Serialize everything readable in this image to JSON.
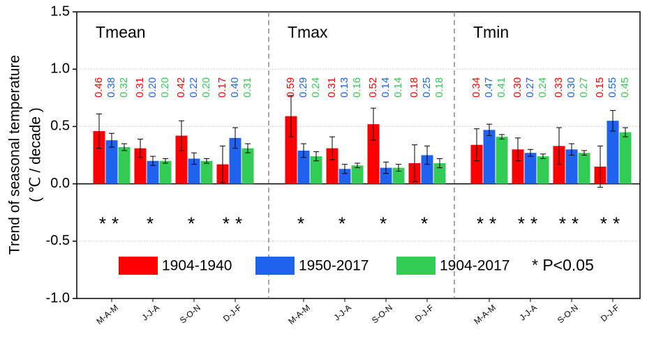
{
  "chart_data": {
    "type": "bar",
    "ylabel": [
      "Trend of seasonal temperature",
      "( ℃ / decade )"
    ],
    "panels": [
      "Tmean",
      "Tmax",
      "Tmin"
    ],
    "categories": [
      "M-A-M",
      "J-J-A",
      "S-O-N",
      "D-J-F",
      "M-A-M",
      "J-J-A",
      "S-O-N",
      "D-J-F",
      "M-A-M",
      "J-J-A",
      "S-O-N",
      "D-J-F"
    ],
    "series": [
      {
        "name": "1904-1940",
        "color": "#ff0000",
        "values": [
          0.46,
          0.31,
          0.42,
          0.17,
          0.59,
          0.31,
          0.52,
          0.18,
          0.34,
          0.3,
          0.33,
          0.15
        ],
        "value_labels": [
          "0.46",
          "0.31",
          "0.42",
          "0.17",
          "0.59",
          "0.31",
          "0.52",
          "0.18",
          "0.34",
          "0.30",
          "0.33",
          "0.15"
        ],
        "errors": [
          0.15,
          0.08,
          0.13,
          0.16,
          0.18,
          0.1,
          0.14,
          0.16,
          0.14,
          0.1,
          0.16,
          0.18
        ]
      },
      {
        "name": "1950-2017",
        "color": "#1f62ee",
        "values": [
          0.38,
          0.2,
          0.22,
          0.4,
          0.29,
          0.13,
          0.14,
          0.25,
          0.47,
          0.27,
          0.3,
          0.55
        ],
        "value_labels": [
          "0.38",
          "0.20",
          "0.22",
          "0.40",
          "0.29",
          "0.13",
          "0.14",
          "0.25",
          "0.47",
          "0.27",
          "0.30",
          "0.55"
        ],
        "errors": [
          0.06,
          0.04,
          0.05,
          0.09,
          0.06,
          0.04,
          0.05,
          0.08,
          0.05,
          0.03,
          0.05,
          0.09
        ]
      },
      {
        "name": "1904-2017",
        "color": "#33cc55",
        "values": [
          0.32,
          0.2,
          0.2,
          0.31,
          0.24,
          0.16,
          0.14,
          0.18,
          0.41,
          0.24,
          0.27,
          0.45
        ],
        "value_labels": [
          "0.32",
          "0.20",
          "0.20",
          "0.31",
          "0.24",
          "0.16",
          "0.14",
          "0.18",
          "0.41",
          "0.24",
          "0.27",
          "0.45"
        ],
        "errors": [
          0.03,
          0.02,
          0.02,
          0.04,
          0.04,
          0.02,
          0.03,
          0.04,
          0.02,
          0.02,
          0.02,
          0.04
        ]
      }
    ],
    "significance": [
      "**",
      "*",
      "*",
      "**",
      "*",
      "*",
      "*",
      "*",
      "**",
      "**",
      "**",
      "**"
    ],
    "significance_note": "* P<0.05",
    "ylim": [
      -1,
      1.5
    ],
    "yticks": [
      {
        "value": -1,
        "label": "-1.0"
      },
      -0.5,
      {
        "value": 0,
        "label": "0.0"
      },
      0.5,
      {
        "value": 1,
        "label": "1.0"
      },
      1.5
    ],
    "grid": true
  }
}
